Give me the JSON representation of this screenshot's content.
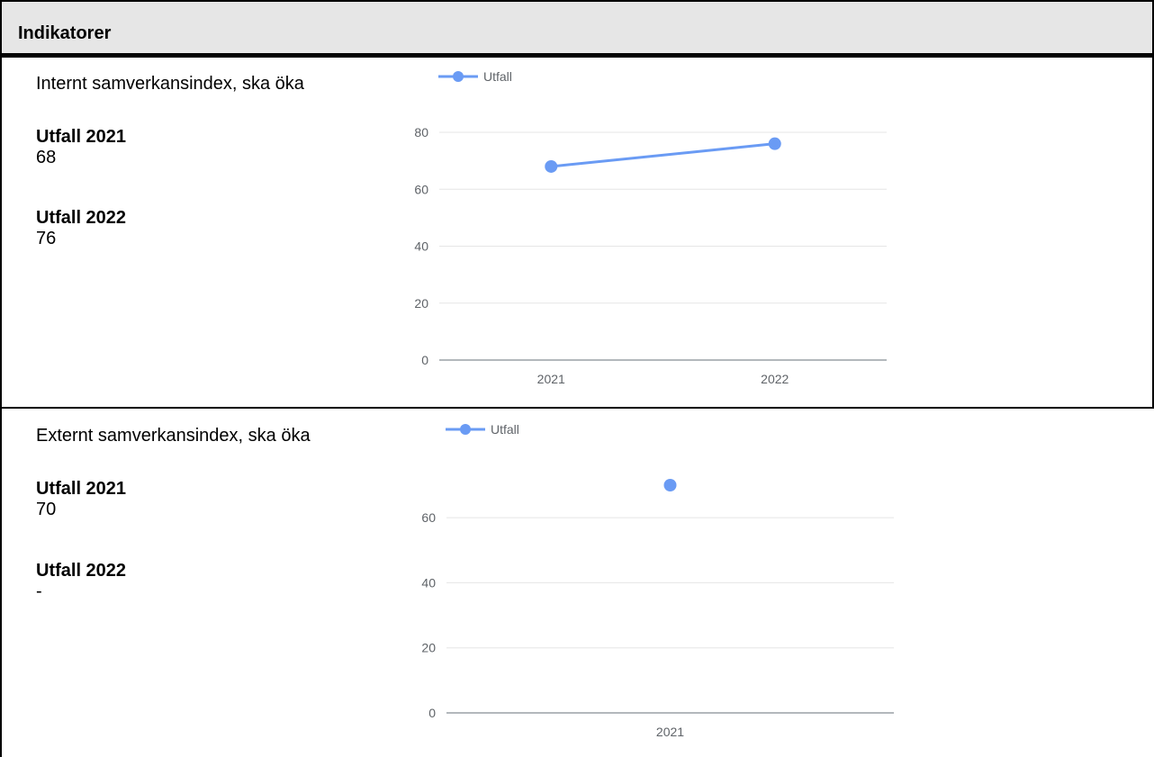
{
  "section": {
    "title": "Indikatorer"
  },
  "indicators": [
    {
      "title": "Internt samverkansindex, ska öka",
      "values": [
        {
          "label": "Utfall 2021",
          "value": "68"
        },
        {
          "label": "Utfall 2022",
          "value": "76"
        }
      ]
    },
    {
      "title": "Externt samverkansindex, ska öka",
      "values": [
        {
          "label": "Utfall 2021",
          "value": "70"
        },
        {
          "label": "Utfall 2022",
          "value": "-"
        }
      ]
    }
  ],
  "chart_data": [
    {
      "type": "line",
      "x": [
        "2021",
        "2022"
      ],
      "series": [
        {
          "name": "Utfall",
          "values": [
            68,
            76
          ],
          "color": "#6a9bf4"
        }
      ],
      "yticks": [
        0,
        20,
        40,
        60,
        80
      ],
      "ylim": [
        0,
        80
      ],
      "grid": true,
      "legend": "top-left"
    },
    {
      "type": "line",
      "x": [
        "2021"
      ],
      "series": [
        {
          "name": "Utfall",
          "values": [
            70
          ],
          "color": "#6a9bf4"
        }
      ],
      "yticks": [
        0,
        20,
        40,
        60
      ],
      "ylim": [
        0,
        70
      ],
      "grid": true,
      "legend": "top-left"
    }
  ]
}
